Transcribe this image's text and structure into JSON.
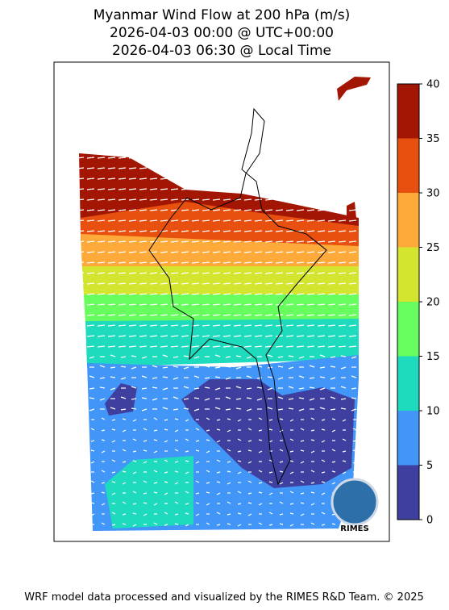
{
  "title": [
    "Myanmar Wind Flow at 200 hPa (m/s)",
    "2026-04-03 00:00 @ UTC+00:00",
    "2026-04-03 06:30 @ Local Time"
  ],
  "colorbar": {
    "ticks": [
      0,
      5,
      10,
      15,
      20,
      25,
      30,
      35,
      40
    ],
    "colors": [
      "#3f3fa0",
      "#4196f8",
      "#1edbbd",
      "#67fd5f",
      "#d3e52f",
      "#fdaa3a",
      "#e8500f",
      "#a31604"
    ]
  },
  "logo": "RIMES",
  "footer": "WRF model data processed and visualized by the RIMES R&D Team. © 2025"
}
